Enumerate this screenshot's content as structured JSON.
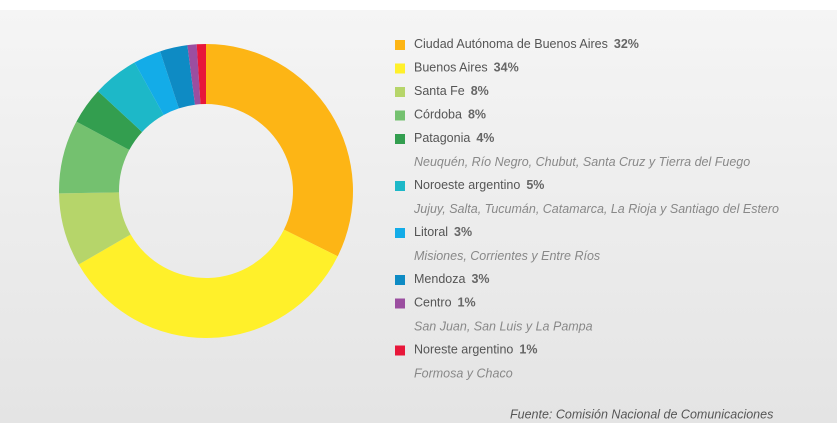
{
  "chart_data": {
    "type": "pie",
    "donut": true,
    "categories": [
      "Ciudad Autónoma de Buenos Aires",
      "Buenos Aires",
      "Santa Fe",
      "Córdoba",
      "Patagonia",
      "Noroeste argentino",
      "Litoral",
      "Mendoza",
      "Centro",
      "Noreste argentino"
    ],
    "values": [
      32,
      34,
      8,
      8,
      4,
      5,
      3,
      3,
      1,
      1
    ],
    "value_labels": [
      "32%",
      "34%",
      "8%",
      "8%",
      "4%",
      "5%",
      "3%",
      "3%",
      "1%",
      "1%"
    ],
    "colors": [
      "#fdb515",
      "#fff02a",
      "#b6d56a",
      "#74c16f",
      "#339e4f",
      "#1db8c8",
      "#13ace8",
      "#0e8bc4",
      "#9b4ea0",
      "#e8173a"
    ],
    "notes": [
      null,
      null,
      null,
      null,
      "Neuquén, Río Negro, Chubut, Santa Cruz y Tierra del Fuego",
      "Jujuy, Salta, Tucumán, Catamarca, La Rioja y Santiago del Estero",
      "Misiones, Corrientes y Entre Ríos",
      null,
      "San Juan, San Luis y La Pampa",
      "Formosa y Chaco"
    ],
    "source": "Fuente: Comisión Nacional de Comunicaciones"
  }
}
